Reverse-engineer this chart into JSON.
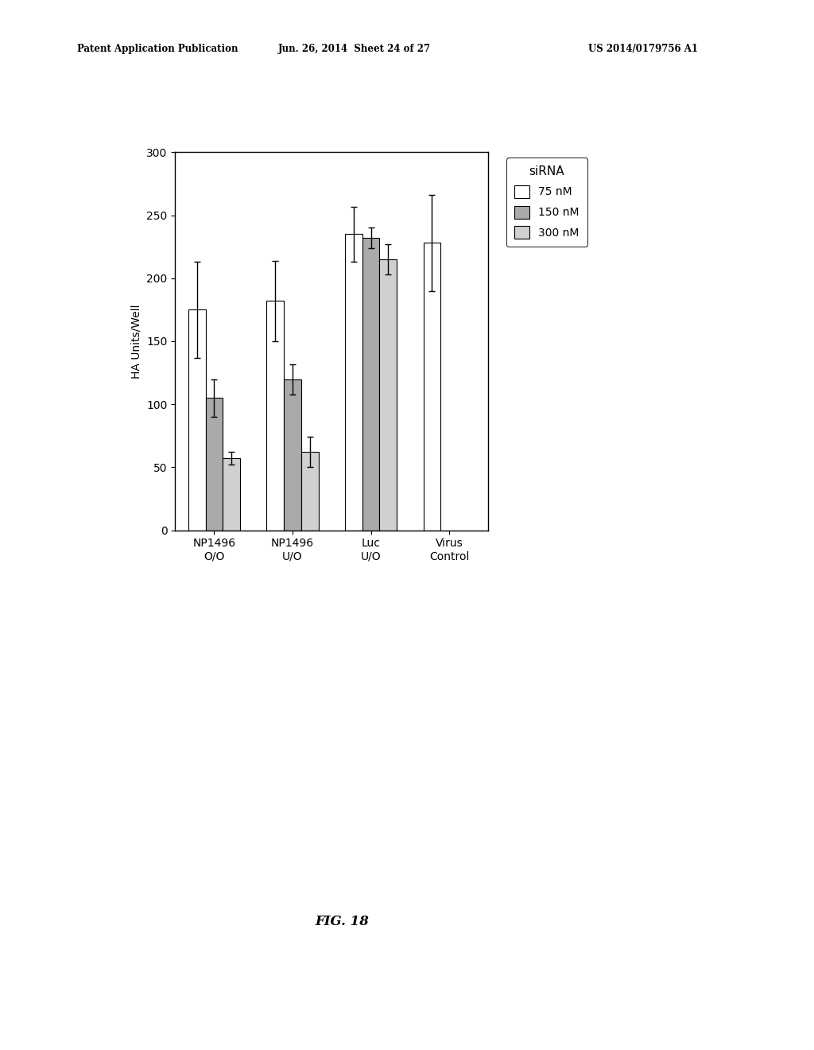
{
  "groups": [
    "NP1496\nO/O",
    "NP1496\nU/O",
    "Luc\nU/O",
    "Virus\nControl"
  ],
  "series": [
    "75 nM",
    "150 nM",
    "300 nM"
  ],
  "values": [
    [
      175,
      105,
      57
    ],
    [
      182,
      120,
      62
    ],
    [
      235,
      232,
      215
    ],
    [
      228,
      null,
      null
    ]
  ],
  "errors": [
    [
      38,
      15,
      5
    ],
    [
      32,
      12,
      12
    ],
    [
      22,
      8,
      12
    ],
    [
      38,
      null,
      null
    ]
  ],
  "bar_colors": [
    "#ffffff",
    "#aaaaaa",
    "#d0d0d0"
  ],
  "bar_edgecolor": "#000000",
  "ylabel": "HA Units/Well",
  "ylim": [
    0,
    300
  ],
  "yticks": [
    0,
    50,
    100,
    150,
    200,
    250,
    300
  ],
  "legend_title": "siRNA",
  "title": "",
  "figsize": [
    10.24,
    13.2
  ],
  "dpi": 100,
  "bar_width": 0.22,
  "background_color": "#ffffff",
  "header_left": "Patent Application Publication",
  "header_mid": "Jun. 26, 2014  Sheet 24 of 27",
  "header_right": "US 2014/0179756 A1",
  "fig_label": "FIG. 18"
}
